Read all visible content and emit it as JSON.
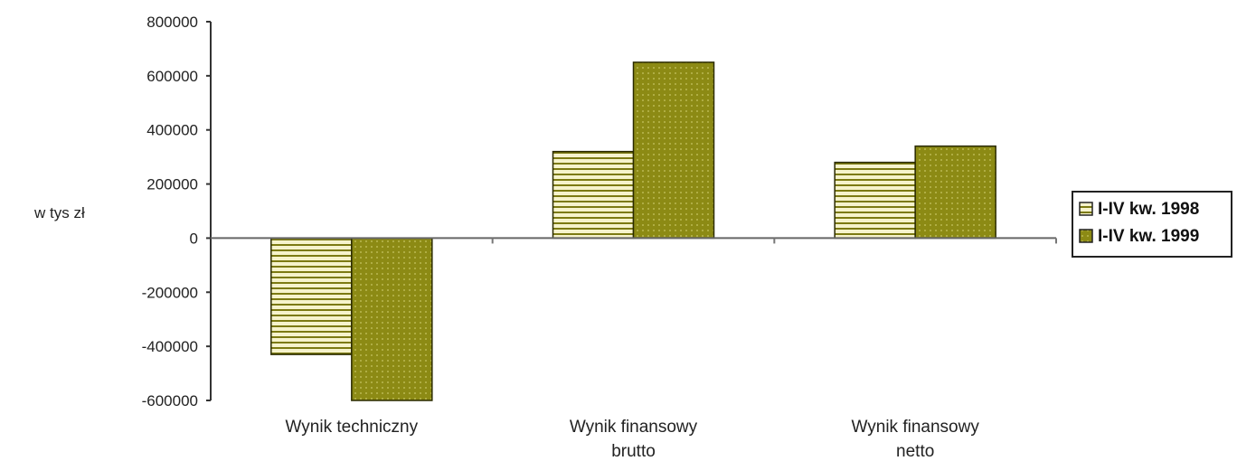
{
  "chart_data": {
    "type": "bar",
    "categories": [
      "Wynik techniczny",
      "Wynik finansowy brutto",
      "Wynik finansowy netto"
    ],
    "category_lines": [
      [
        "Wynik techniczny"
      ],
      [
        "Wynik finansowy",
        "brutto"
      ],
      [
        "Wynik finansowy",
        "netto"
      ]
    ],
    "series": [
      {
        "name": "I-IV kw. 1998",
        "values": [
          -430000,
          320000,
          280000
        ],
        "color": "#f5f2c8",
        "pattern": "horizontal-stripes"
      },
      {
        "name": "I-IV kw. 1999",
        "values": [
          -600000,
          650000,
          340000
        ],
        "color": "#8c8a14",
        "pattern": "dots"
      }
    ],
    "ylabel": "w tys zł",
    "ylim": [
      -600000,
      800000
    ],
    "yticks": [
      800000,
      600000,
      400000,
      200000,
      0,
      -200000,
      -400000,
      -600000
    ],
    "ytick_labels": [
      "800000",
      "600000",
      "400000",
      "200000",
      "0",
      "-200000",
      "-400000",
      "-600000"
    ],
    "grid": false,
    "legend_position": "right"
  }
}
